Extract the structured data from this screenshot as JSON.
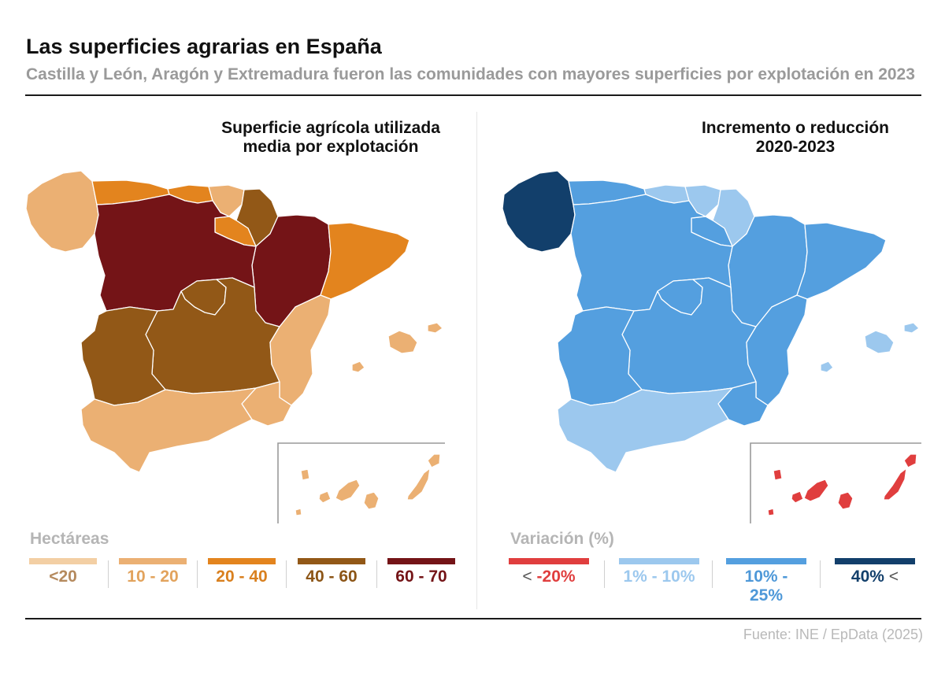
{
  "header": {
    "title": "Las superficies agrarias en España",
    "subtitle": "Castilla y León, Aragón y Extremadura fueron las comunidades con mayores superficies por explotación en 2023"
  },
  "left_panel": {
    "title_line1": "Superficie agrícola utilizada",
    "title_line2": "media por explotación",
    "legend": {
      "title": "Hectáreas",
      "items": [
        {
          "label": "<20",
          "color": "#f3cfa4",
          "text_color": "#b58a5e"
        },
        {
          "label": "10 - 20",
          "color": "#ebb073",
          "text_color": "#e2a35d"
        },
        {
          "label": "20 - 40",
          "color": "#e3841e",
          "text_color": "#d9801f"
        },
        {
          "label": "40 - 60",
          "color": "#925817",
          "text_color": "#8c5516"
        },
        {
          "label": "60 - 70",
          "color": "#741417",
          "text_color": "#741417"
        }
      ]
    }
  },
  "right_panel": {
    "title_line1": "Incremento o reducción",
    "title_line2": "2020-2023",
    "legend": {
      "title": "Variación (%)",
      "items": [
        {
          "label_sign": "<",
          "label_value": "-20%",
          "color": "#e03e3e",
          "text_color": "#e03e3e"
        },
        {
          "label": "1% - 10%",
          "color": "#9cc8ee",
          "text_color": "#9cc8ee"
        },
        {
          "label": "10% - 25%",
          "color": "#549fdf",
          "text_color": "#4e98d8"
        },
        {
          "label_value": "40%",
          "label_sign": "<",
          "color": "#123f6b",
          "text_color": "#123f6b"
        }
      ]
    }
  },
  "footer": {
    "source": "Fuente: INE / EpData (2025)"
  },
  "map_data": {
    "left": [
      {
        "region": "Galicia",
        "category": "10 - 20",
        "color": "#ebb073"
      },
      {
        "region": "Asturias",
        "category": "20 - 40",
        "color": "#e3841e"
      },
      {
        "region": "Cantabria",
        "category": "20 - 40",
        "color": "#e3841e"
      },
      {
        "region": "País Vasco",
        "category": "10 - 20",
        "color": "#ebb073"
      },
      {
        "region": "Navarra",
        "category": "40 - 60",
        "color": "#925817"
      },
      {
        "region": "La Rioja",
        "category": "20 - 40",
        "color": "#e3841e"
      },
      {
        "region": "Aragón",
        "category": "60 - 70",
        "color": "#741417"
      },
      {
        "region": "Cataluña",
        "category": "20 - 40",
        "color": "#e3841e"
      },
      {
        "region": "Castilla y León",
        "category": "60 - 70",
        "color": "#741417"
      },
      {
        "region": "Madrid",
        "category": "40 - 60",
        "color": "#925817"
      },
      {
        "region": "Castilla-La Mancha",
        "category": "40 - 60",
        "color": "#925817"
      },
      {
        "region": "Extremadura",
        "category": "40 - 60",
        "color": "#925817"
      },
      {
        "region": "Comunidad Valenciana",
        "category": "10 - 20",
        "color": "#ebb073"
      },
      {
        "region": "Murcia",
        "category": "10 - 20",
        "color": "#ebb073"
      },
      {
        "region": "Andalucía",
        "category": "10 - 20",
        "color": "#ebb073"
      },
      {
        "region": "Baleares",
        "category": "10 - 20",
        "color": "#ebb073"
      },
      {
        "region": "Canarias",
        "category": "10 - 20",
        "color": "#ebb073"
      }
    ],
    "right": [
      {
        "region": "Galicia",
        "category": "40% <",
        "color": "#123f6b"
      },
      {
        "region": "Asturias",
        "category": "10% - 25%",
        "color": "#549fdf"
      },
      {
        "region": "Cantabria",
        "category": "1% - 10%",
        "color": "#9cc8ee"
      },
      {
        "region": "País Vasco",
        "category": "1% - 10%",
        "color": "#9cc8ee"
      },
      {
        "region": "Navarra",
        "category": "1% - 10%",
        "color": "#9cc8ee"
      },
      {
        "region": "La Rioja",
        "category": "10% - 25%",
        "color": "#549fdf"
      },
      {
        "region": "Aragón",
        "category": "10% - 25%",
        "color": "#549fdf"
      },
      {
        "region": "Cataluña",
        "category": "10% - 25%",
        "color": "#549fdf"
      },
      {
        "region": "Castilla y León",
        "category": "10% - 25%",
        "color": "#549fdf"
      },
      {
        "region": "Madrid",
        "category": "10% - 25%",
        "color": "#549fdf"
      },
      {
        "region": "Castilla-La Mancha",
        "category": "10% - 25%",
        "color": "#549fdf"
      },
      {
        "region": "Extremadura",
        "category": "10% - 25%",
        "color": "#549fdf"
      },
      {
        "region": "Comunidad Valenciana",
        "category": "10% - 25%",
        "color": "#549fdf"
      },
      {
        "region": "Murcia",
        "category": "10% - 25%",
        "color": "#549fdf"
      },
      {
        "region": "Andalucía",
        "category": "1% - 10%",
        "color": "#9cc8ee"
      },
      {
        "region": "Baleares",
        "category": "1% - 10%",
        "color": "#9cc8ee"
      },
      {
        "region": "Canarias",
        "category": "< -20%",
        "color": "#e03e3e"
      }
    ]
  }
}
